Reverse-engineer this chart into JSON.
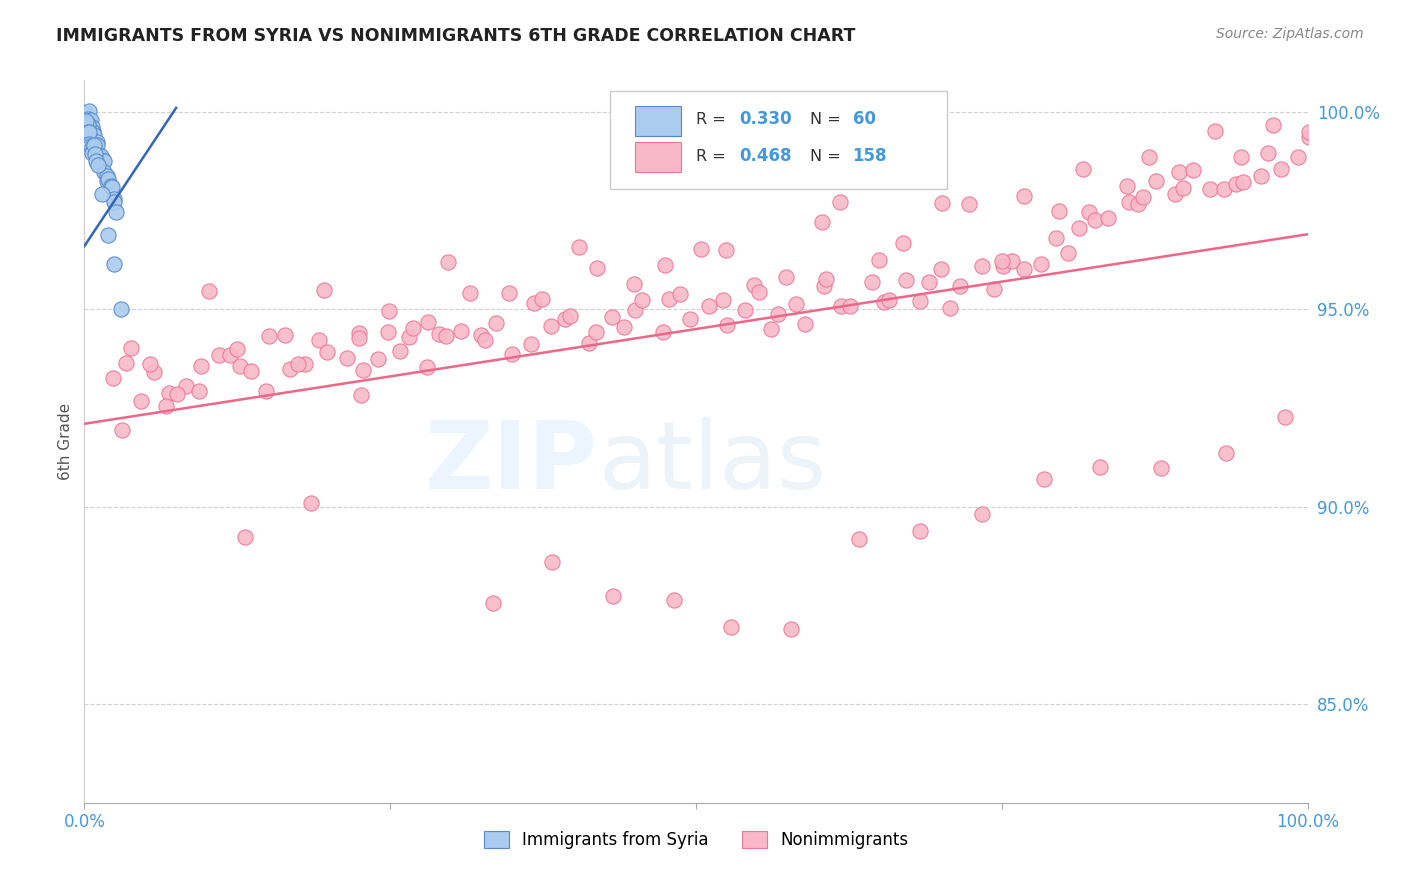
{
  "title": "IMMIGRANTS FROM SYRIA VS NONIMMIGRANTS 6TH GRADE CORRELATION CHART",
  "source": "Source: ZipAtlas.com",
  "ylabel": "6th Grade",
  "axis_label_color": "#4499dd",
  "title_color": "#222222",
  "blue_color": "#aaccee",
  "pink_color": "#f8b8c8",
  "blue_edge_color": "#5588cc",
  "pink_edge_color": "#ee7799",
  "blue_line_color": "#3366bb",
  "pink_line_color": "#ee6688",
  "xlim": [
    0.0,
    1.0
  ],
  "ylim": [
    0.825,
    1.008
  ],
  "ytick_positions": [
    1.0,
    0.95,
    0.9,
    0.85
  ],
  "ytick_labels": [
    "100.0%",
    "95.0%",
    "90.0%",
    "85.0%"
  ],
  "legend_r1": "0.330",
  "legend_n1": "60",
  "legend_r2": "0.468",
  "legend_n2": "158",
  "pink_trendline_x": [
    0.0,
    1.0
  ],
  "pink_trendline_y": [
    0.921,
    0.969
  ],
  "blue_trendline_x": [
    0.0,
    0.075
  ],
  "blue_trendline_y": [
    0.966,
    1.001
  ],
  "blue_x": [
    0.002,
    0.002,
    0.003,
    0.003,
    0.003,
    0.004,
    0.004,
    0.004,
    0.005,
    0.005,
    0.005,
    0.006,
    0.006,
    0.007,
    0.007,
    0.008,
    0.008,
    0.009,
    0.009,
    0.01,
    0.01,
    0.011,
    0.011,
    0.012,
    0.012,
    0.013,
    0.014,
    0.015,
    0.016,
    0.017,
    0.018,
    0.019,
    0.02,
    0.021,
    0.022,
    0.024,
    0.025,
    0.027,
    0.001,
    0.001,
    0.001,
    0.001,
    0.001,
    0.002,
    0.002,
    0.003,
    0.003,
    0.004,
    0.004,
    0.005,
    0.005,
    0.006,
    0.007,
    0.008,
    0.009,
    0.01,
    0.015,
    0.02,
    0.025,
    0.03
  ],
  "blue_y": [
    1.0,
    0.999,
    0.999,
    0.998,
    0.997,
    0.998,
    0.997,
    0.996,
    0.997,
    0.996,
    0.995,
    0.996,
    0.995,
    0.995,
    0.994,
    0.994,
    0.993,
    0.993,
    0.992,
    0.992,
    0.991,
    0.991,
    0.99,
    0.99,
    0.989,
    0.989,
    0.988,
    0.987,
    0.986,
    0.985,
    0.984,
    0.983,
    0.982,
    0.981,
    0.98,
    0.978,
    0.977,
    0.975,
    0.999,
    0.998,
    0.997,
    0.996,
    0.995,
    0.997,
    0.996,
    0.996,
    0.995,
    0.994,
    0.993,
    0.993,
    0.992,
    0.991,
    0.99,
    0.988,
    0.987,
    0.985,
    0.978,
    0.97,
    0.96,
    0.95
  ],
  "pink_x": [
    0.02,
    0.03,
    0.04,
    0.05,
    0.06,
    0.07,
    0.08,
    0.09,
    0.1,
    0.11,
    0.12,
    0.13,
    0.14,
    0.15,
    0.16,
    0.17,
    0.18,
    0.19,
    0.2,
    0.21,
    0.22,
    0.23,
    0.24,
    0.25,
    0.26,
    0.27,
    0.28,
    0.29,
    0.3,
    0.31,
    0.32,
    0.33,
    0.34,
    0.35,
    0.36,
    0.37,
    0.38,
    0.39,
    0.4,
    0.41,
    0.42,
    0.43,
    0.44,
    0.45,
    0.46,
    0.47,
    0.48,
    0.49,
    0.5,
    0.51,
    0.52,
    0.53,
    0.54,
    0.55,
    0.56,
    0.57,
    0.58,
    0.59,
    0.6,
    0.61,
    0.62,
    0.63,
    0.64,
    0.65,
    0.66,
    0.67,
    0.68,
    0.69,
    0.7,
    0.71,
    0.72,
    0.73,
    0.74,
    0.75,
    0.76,
    0.77,
    0.78,
    0.79,
    0.8,
    0.81,
    0.82,
    0.83,
    0.84,
    0.85,
    0.86,
    0.87,
    0.88,
    0.89,
    0.9,
    0.91,
    0.92,
    0.93,
    0.94,
    0.95,
    0.96,
    0.97,
    0.98,
    0.99,
    1.0,
    0.05,
    0.1,
    0.15,
    0.2,
    0.25,
    0.3,
    0.35,
    0.4,
    0.45,
    0.5,
    0.55,
    0.6,
    0.65,
    0.7,
    0.75,
    0.8,
    0.85,
    0.9,
    0.95,
    1.0,
    0.07,
    0.12,
    0.17,
    0.22,
    0.27,
    0.32,
    0.37,
    0.42,
    0.47,
    0.52,
    0.57,
    0.62,
    0.67,
    0.72,
    0.77,
    0.82,
    0.87,
    0.92,
    0.97,
    0.03,
    0.08,
    0.13,
    0.18,
    0.23,
    0.28,
    0.33,
    0.38,
    0.43,
    0.48,
    0.53,
    0.58,
    0.63,
    0.68,
    0.73,
    0.78,
    0.83,
    0.88,
    0.93,
    0.98
  ],
  "pink_y": [
    0.931,
    0.934,
    0.937,
    0.928,
    0.935,
    0.932,
    0.93,
    0.933,
    0.936,
    0.938,
    0.94,
    0.935,
    0.938,
    0.933,
    0.941,
    0.936,
    0.939,
    0.942,
    0.937,
    0.94,
    0.943,
    0.938,
    0.941,
    0.944,
    0.939,
    0.942,
    0.945,
    0.94,
    0.943,
    0.946,
    0.941,
    0.944,
    0.947,
    0.942,
    0.945,
    0.948,
    0.943,
    0.946,
    0.949,
    0.944,
    0.947,
    0.95,
    0.945,
    0.948,
    0.951,
    0.946,
    0.949,
    0.952,
    0.947,
    0.95,
    0.953,
    0.948,
    0.951,
    0.954,
    0.949,
    0.952,
    0.955,
    0.95,
    0.953,
    0.956,
    0.951,
    0.954,
    0.957,
    0.952,
    0.955,
    0.958,
    0.953,
    0.956,
    0.959,
    0.954,
    0.957,
    0.96,
    0.955,
    0.958,
    0.961,
    0.963,
    0.965,
    0.967,
    0.968,
    0.97,
    0.971,
    0.972,
    0.974,
    0.976,
    0.977,
    0.978,
    0.979,
    0.98,
    0.981,
    0.982,
    0.983,
    0.984,
    0.985,
    0.986,
    0.987,
    0.988,
    0.989,
    0.99,
    0.991,
    0.94,
    0.952,
    0.945,
    0.958,
    0.948,
    0.961,
    0.951,
    0.964,
    0.954,
    0.967,
    0.957,
    0.97,
    0.96,
    0.973,
    0.963,
    0.976,
    0.979,
    0.982,
    0.985,
    0.992,
    0.926,
    0.938,
    0.934,
    0.946,
    0.942,
    0.954,
    0.95,
    0.962,
    0.958,
    0.966,
    0.962,
    0.974,
    0.97,
    0.978,
    0.975,
    0.982,
    0.988,
    0.994,
    0.997,
    0.921,
    0.93,
    0.891,
    0.899,
    0.926,
    0.933,
    0.879,
    0.886,
    0.881,
    0.876,
    0.87,
    0.866,
    0.893,
    0.897,
    0.901,
    0.905,
    0.909,
    0.913,
    0.917,
    0.921
  ]
}
